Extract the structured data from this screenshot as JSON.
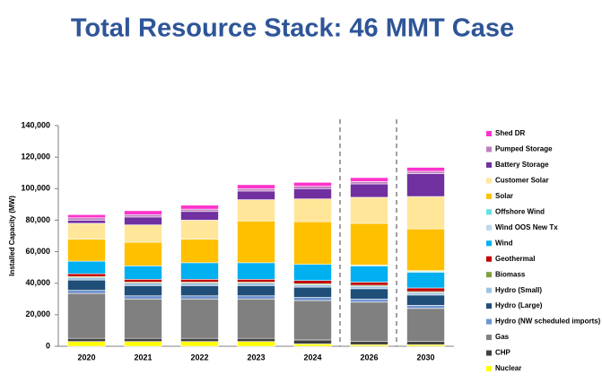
{
  "chart_data": {
    "type": "stacked-bar",
    "title": "Total Resource Stack: 46 MMT Case",
    "y_label": "Installed Capacity (MW)",
    "categories": [
      "2020",
      "2021",
      "2022",
      "2023",
      "2024",
      "2026",
      "2030"
    ],
    "ylim": [
      0,
      140000
    ],
    "yticks": [
      0,
      {
        "value": 20000,
        "label": "20,000"
      },
      {
        "value": 40000,
        "label": "40,000"
      },
      {
        "value": 60000,
        "label": "60,000"
      },
      {
        "value": 80000,
        "label": "80,000"
      },
      {
        "value": 100000,
        "label": "100,000"
      },
      {
        "value": 120000,
        "label": "120,000"
      },
      {
        "value": 140000,
        "label": "140,000"
      }
    ],
    "series": [
      {
        "name": "Nuclear",
        "color": "#ffff00",
        "values": [
          3000,
          3000,
          3000,
          3000,
          1500,
          1000,
          1000
        ]
      },
      {
        "name": "CHP",
        "color": "#404040",
        "values": [
          2000,
          2000,
          2000,
          2000,
          2500,
          2000,
          2000
        ]
      },
      {
        "name": "Gas",
        "color": "#808080",
        "values": [
          28500,
          25000,
          25000,
          25000,
          25000,
          25000,
          21000
        ]
      },
      {
        "name": "Hydro (NW scheduled imports)",
        "color": "#7094d0",
        "values": [
          2000,
          2000,
          2000,
          2000,
          2000,
          2000,
          2000
        ]
      },
      {
        "name": "Hydro (Large)",
        "color": "#1f4e79",
        "values": [
          6500,
          6500,
          6500,
          6500,
          6500,
          6500,
          6500
        ]
      },
      {
        "name": "Hydro (Small)",
        "color": "#9dc3e6",
        "values": [
          1500,
          1500,
          1500,
          1500,
          1500,
          1500,
          1500
        ]
      },
      {
        "name": "Biomass",
        "color": "#7f9f3f",
        "values": [
          700,
          700,
          700,
          700,
          700,
          700,
          700
        ]
      },
      {
        "name": "Geothermal",
        "color": "#c00000",
        "values": [
          1800,
          1800,
          1800,
          1800,
          2000,
          2000,
          2300
        ]
      },
      {
        "name": "Wind",
        "color": "#00b0f0",
        "values": [
          8000,
          8500,
          10500,
          10500,
          10300,
          10300,
          10000
        ]
      },
      {
        "name": "Wind OOS New Tx",
        "color": "#bdd7ee",
        "values": [
          0,
          0,
          0,
          0,
          0,
          500,
          500
        ]
      },
      {
        "name": "Offshore Wind",
        "color": "#66e0e0",
        "values": [
          0,
          0,
          0,
          0,
          0,
          0,
          500
        ]
      },
      {
        "name": "Solar",
        "color": "#ffc000",
        "values": [
          14000,
          15000,
          15000,
          26500,
          27000,
          26500,
          26500
        ]
      },
      {
        "name": "Customer Solar",
        "color": "#ffe699",
        "values": [
          10000,
          11000,
          12000,
          13500,
          14500,
          16500,
          20500
        ]
      },
      {
        "name": "Battery Storage",
        "color": "#7030a0",
        "values": [
          2000,
          5000,
          5500,
          5500,
          6500,
          8500,
          14500
        ]
      },
      {
        "name": "Pumped Storage",
        "color": "#c080c0",
        "values": [
          1500,
          1500,
          1500,
          1500,
          1500,
          1500,
          1500
        ]
      },
      {
        "name": "Shed DR",
        "color": "#ff33cc",
        "values": [
          2000,
          2500,
          2500,
          2500,
          2500,
          2500,
          2500
        ]
      }
    ]
  }
}
